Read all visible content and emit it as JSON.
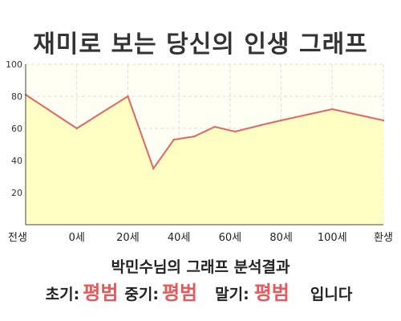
{
  "title": "재미로 보는 당신의 인생 그래프",
  "chart_data": {
    "type": "area",
    "categories": [
      "전생",
      "0세",
      "20세",
      "40세",
      "60세",
      "80세",
      "100세",
      "환생"
    ],
    "x_tick_positions": [
      0,
      1,
      2,
      3,
      4,
      5,
      6,
      7
    ],
    "x": [
      0,
      1,
      2,
      2.5,
      2.9,
      3.3,
      3.7,
      4.1,
      4.6,
      5.0,
      6.0,
      7.0
    ],
    "values": [
      81,
      60,
      80,
      35,
      53,
      55,
      61,
      58,
      62,
      65,
      72,
      65
    ],
    "ylim": [
      0,
      100
    ],
    "yticks": [
      20,
      40,
      60,
      80,
      100
    ],
    "xlabel": "",
    "ylabel": "",
    "grid": true,
    "colors": {
      "line": "#e06666",
      "fill": "#ffffc4",
      "grid": "#dddddd"
    }
  },
  "summary": {
    "subtitle": "박민수님의 그래프 분석결과",
    "early_label": "초기:",
    "early_value": "평범",
    "middle_label": "중기:",
    "middle_value": "평범",
    "late_label": "말기:",
    "late_value": "평범",
    "ending": "입니다"
  }
}
